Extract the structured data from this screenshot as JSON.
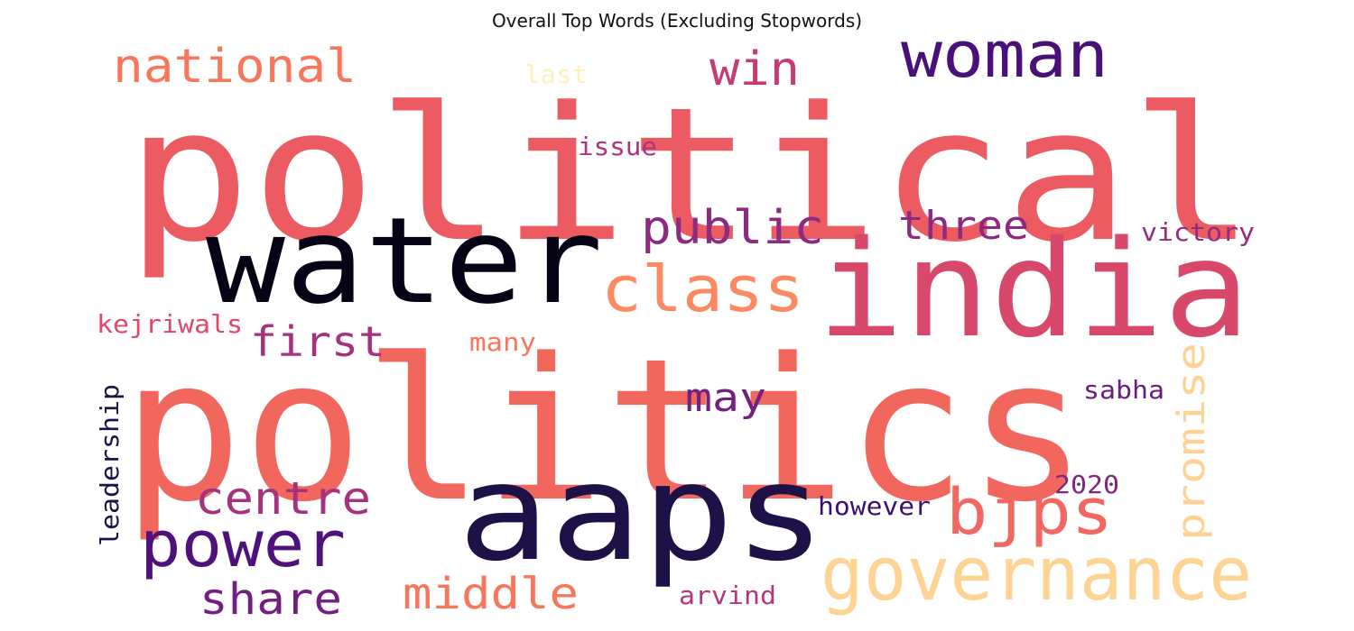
{
  "title": "Overall Top Words (Excluding Stopwords)",
  "words": [
    {
      "text": "political",
      "color": "#EC5B61"
    },
    {
      "text": "politics",
      "color": "#F1675D"
    },
    {
      "text": "water",
      "color": "#050416"
    },
    {
      "text": "india",
      "color": "#D8486A"
    },
    {
      "text": "aaps",
      "color": "#1D1147"
    },
    {
      "text": "governance",
      "color": "#FDD494"
    },
    {
      "text": "woman",
      "color": "#4A1079"
    },
    {
      "text": "class",
      "color": "#FB8A63"
    },
    {
      "text": "power",
      "color": "#4F127B"
    },
    {
      "text": "bjps",
      "color": "#F2675F"
    },
    {
      "text": "public",
      "color": "#8D2B81"
    },
    {
      "text": "national",
      "color": "#F7765C"
    },
    {
      "text": "win",
      "color": "#C33D73"
    },
    {
      "text": "three",
      "color": "#8C2981"
    },
    {
      "text": "centre",
      "color": "#A6327E"
    },
    {
      "text": "first",
      "color": "#A5327E"
    },
    {
      "text": "share",
      "color": "#721F81"
    },
    {
      "text": "middle",
      "color": "#F8765C"
    },
    {
      "text": "promise",
      "color": "#FED295"
    },
    {
      "text": "may",
      "color": "#73217F"
    },
    {
      "text": "leadership",
      "color": "#1E1246"
    },
    {
      "text": "kejriwals",
      "color": "#DE4968"
    },
    {
      "text": "victory",
      "color": "#932B80"
    },
    {
      "text": "issue",
      "color": "#AE347B"
    },
    {
      "text": "sabha",
      "color": "#6B1D81"
    },
    {
      "text": "many",
      "color": "#F8765C"
    },
    {
      "text": "however",
      "color": "#3D0F71"
    },
    {
      "text": "2020",
      "color": "#802582"
    },
    {
      "text": "arvind",
      "color": "#B5367A"
    },
    {
      "text": "last",
      "color": "#FCF3BC"
    }
  ]
}
